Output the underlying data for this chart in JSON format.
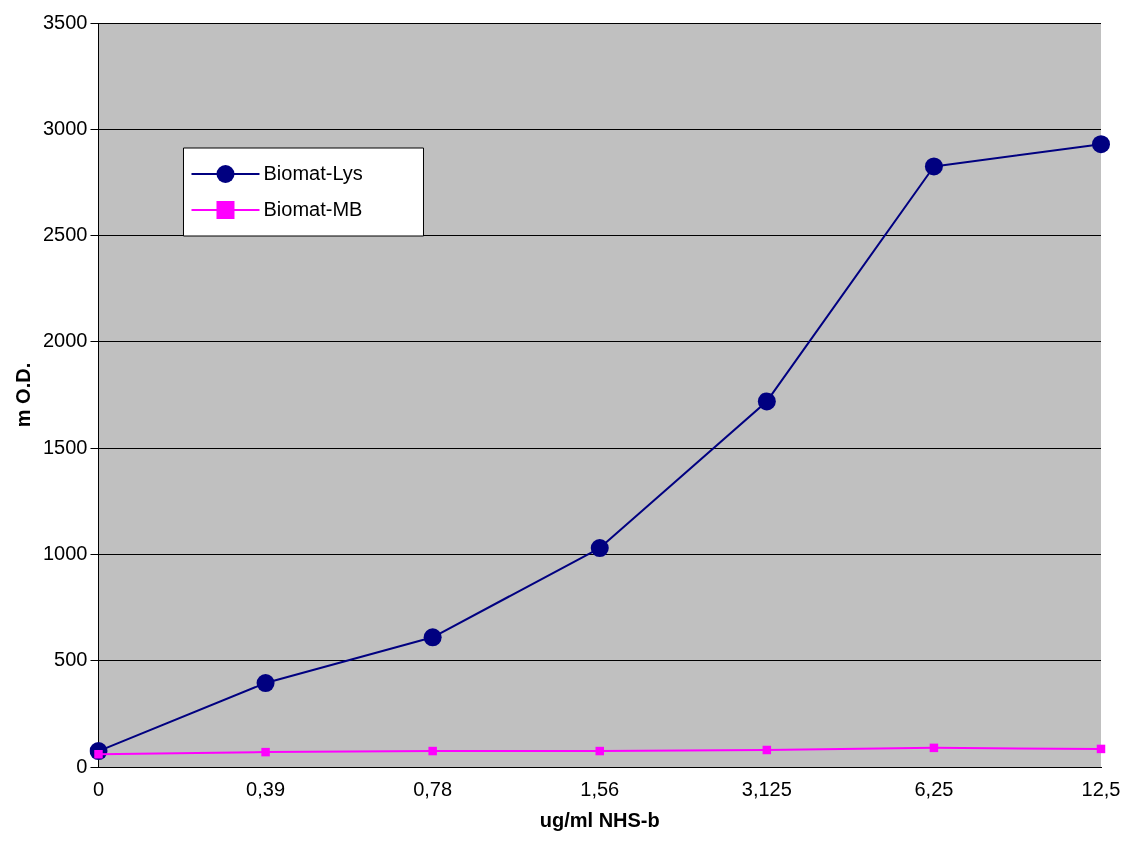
{
  "chart_data": {
    "type": "line",
    "xlabel": "ug/ml NHS-b",
    "ylabel": "m O.D.",
    "categories": [
      "0",
      "0,39",
      "0,78",
      "1,56",
      "3,125",
      "6,25",
      "12,5"
    ],
    "series": [
      {
        "name": "Biomat-Lys",
        "color": "#000080",
        "marker": "circle",
        "values": [
          75,
          395,
          610,
          1030,
          1720,
          2825,
          2930
        ]
      },
      {
        "name": "Biomat-MB",
        "color": "#ff00ff",
        "marker": "square",
        "values": [
          60,
          70,
          75,
          75,
          80,
          90,
          85
        ]
      }
    ],
    "ylim": [
      0,
      3500
    ],
    "yticks": [
      0,
      500,
      1000,
      1500,
      2000,
      2500,
      3000,
      3500
    ],
    "grid": "y",
    "legend": "top left"
  }
}
